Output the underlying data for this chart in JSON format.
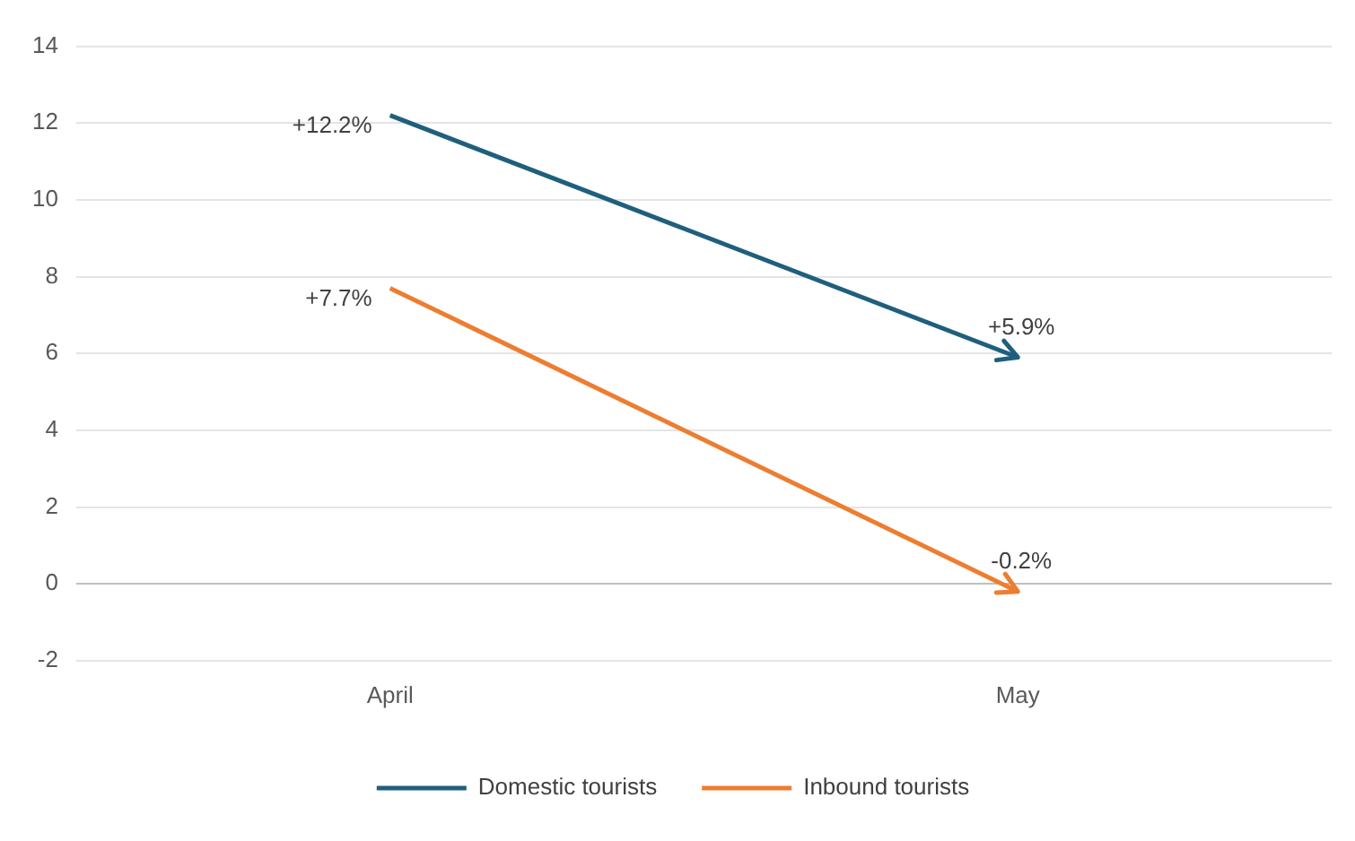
{
  "chart_data": {
    "type": "line",
    "categories": [
      "April",
      "May"
    ],
    "series": [
      {
        "name": "Domestic tourists",
        "color": "#1f5f7d",
        "values": [
          12.2,
          5.9
        ],
        "value_labels": [
          "+12.2%",
          "+5.9%"
        ]
      },
      {
        "name": "Inbound tourists",
        "color": "#ed7d31",
        "values": [
          7.7,
          -0.2
        ],
        "value_labels": [
          "+7.7%",
          "-0.2%"
        ]
      }
    ],
    "ylim": [
      -2,
      14
    ],
    "yticks": [
      -2,
      0,
      2,
      4,
      6,
      8,
      10,
      12,
      14
    ],
    "grid": "y",
    "legend": "bottom",
    "marker": "none",
    "line_style": "solid"
  }
}
